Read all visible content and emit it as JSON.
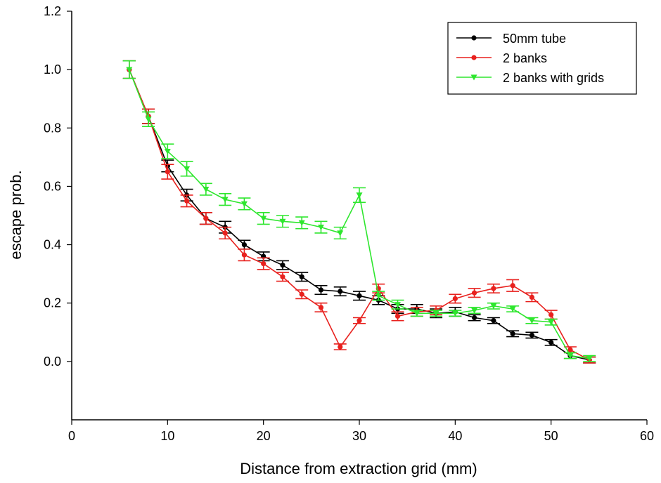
{
  "chart_data": {
    "type": "line",
    "title": "",
    "xlabel": "Distance from extraction grid (mm)",
    "ylabel": "escape prob.",
    "xlim": [
      0,
      60
    ],
    "ylim": [
      -0.2,
      1.2
    ],
    "x_ticks": [
      0,
      10,
      20,
      30,
      40,
      50,
      60
    ],
    "y_ticks": [
      0.0,
      0.2,
      0.4,
      0.6,
      0.8,
      1.0,
      1.2
    ],
    "x_tick_labels": [
      "0",
      "10",
      "20",
      "30",
      "40",
      "50",
      "60"
    ],
    "y_tick_labels": [
      "0.0",
      "0.2",
      "0.4",
      "0.6",
      "0.8",
      "1.0",
      "1.2"
    ],
    "grid": false,
    "legend_position": "top-right",
    "series": [
      {
        "name": "50mm tube",
        "color": "#000000",
        "marker": "circle",
        "x": [
          6,
          8,
          10,
          12,
          14,
          16,
          18,
          20,
          22,
          24,
          26,
          28,
          30,
          32,
          34,
          36,
          38,
          40,
          42,
          44,
          46,
          48,
          50,
          52,
          54
        ],
        "y": [
          1.0,
          0.84,
          0.67,
          0.57,
          0.49,
          0.46,
          0.4,
          0.36,
          0.33,
          0.29,
          0.245,
          0.24,
          0.225,
          0.21,
          0.18,
          0.18,
          0.165,
          0.17,
          0.15,
          0.14,
          0.095,
          0.09,
          0.065,
          0.02,
          0.005
        ],
        "error": [
          0.03,
          0.025,
          0.02,
          0.02,
          0.02,
          0.02,
          0.015,
          0.015,
          0.015,
          0.015,
          0.015,
          0.015,
          0.015,
          0.015,
          0.015,
          0.015,
          0.015,
          0.015,
          0.01,
          0.01,
          0.01,
          0.01,
          0.01,
          0.01,
          0.01
        ]
      },
      {
        "name": "2 banks",
        "color": "#e8211e",
        "marker": "circle",
        "x": [
          6,
          8,
          10,
          12,
          14,
          16,
          18,
          20,
          22,
          24,
          26,
          28,
          30,
          32,
          34,
          36,
          38,
          40,
          42,
          44,
          46,
          48,
          50,
          52,
          54
        ],
        "y": [
          1.0,
          0.84,
          0.65,
          0.55,
          0.49,
          0.44,
          0.365,
          0.335,
          0.29,
          0.23,
          0.185,
          0.05,
          0.14,
          0.25,
          0.155,
          0.17,
          0.175,
          0.215,
          0.235,
          0.25,
          0.26,
          0.22,
          0.16,
          0.04,
          0.005
        ],
        "error": [
          0.03,
          0.025,
          0.025,
          0.02,
          0.02,
          0.02,
          0.02,
          0.02,
          0.015,
          0.015,
          0.015,
          0.01,
          0.01,
          0.015,
          0.015,
          0.015,
          0.015,
          0.015,
          0.015,
          0.015,
          0.02,
          0.015,
          0.015,
          0.01,
          0.01
        ]
      },
      {
        "name": "2 banks with grids",
        "color": "#2ee62e",
        "marker": "triangle-down",
        "x": [
          6,
          8,
          10,
          12,
          14,
          16,
          18,
          20,
          22,
          24,
          26,
          28,
          30,
          32,
          34,
          36,
          38,
          40,
          42,
          44,
          46,
          48,
          50,
          52,
          54
        ],
        "y": [
          1.0,
          0.83,
          0.72,
          0.66,
          0.59,
          0.555,
          0.54,
          0.49,
          0.48,
          0.475,
          0.46,
          0.44,
          0.57,
          0.225,
          0.195,
          0.165,
          0.165,
          0.165,
          0.175,
          0.19,
          0.18,
          0.14,
          0.135,
          0.02,
          0.01
        ],
        "error": [
          0.03,
          0.025,
          0.025,
          0.025,
          0.02,
          0.02,
          0.02,
          0.02,
          0.02,
          0.02,
          0.02,
          0.02,
          0.025,
          0.015,
          0.015,
          0.01,
          0.01,
          0.01,
          0.01,
          0.01,
          0.01,
          0.01,
          0.01,
          0.01,
          0.01
        ]
      }
    ]
  }
}
